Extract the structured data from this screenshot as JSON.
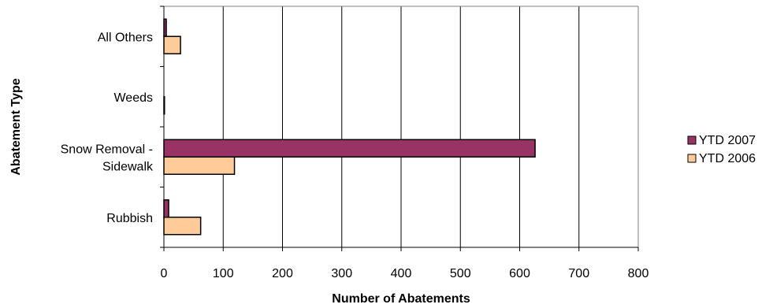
{
  "chart_data": {
    "type": "bar",
    "orientation": "horizontal",
    "title": "",
    "xlabel": "Number of Abatements",
    "ylabel": "Abatement Type",
    "categories": [
      [
        "All Others"
      ],
      [
        "Weeds"
      ],
      [
        "Snow Removal -",
        "Sidewalk"
      ],
      [
        "Rubbish"
      ]
    ],
    "series": [
      {
        "name": "YTD 2007",
        "color": "#993366",
        "values": [
          4,
          0,
          626,
          8
        ]
      },
      {
        "name": "YTD 2006",
        "color": "#ffcc99",
        "values": [
          28,
          1,
          119,
          62
        ]
      }
    ],
    "xlim": [
      0,
      800
    ],
    "xticks": [
      "0",
      "100",
      "200",
      "300",
      "400",
      "500",
      "600",
      "700",
      "800"
    ],
    "grid": "vertical",
    "legend_position": "right"
  }
}
